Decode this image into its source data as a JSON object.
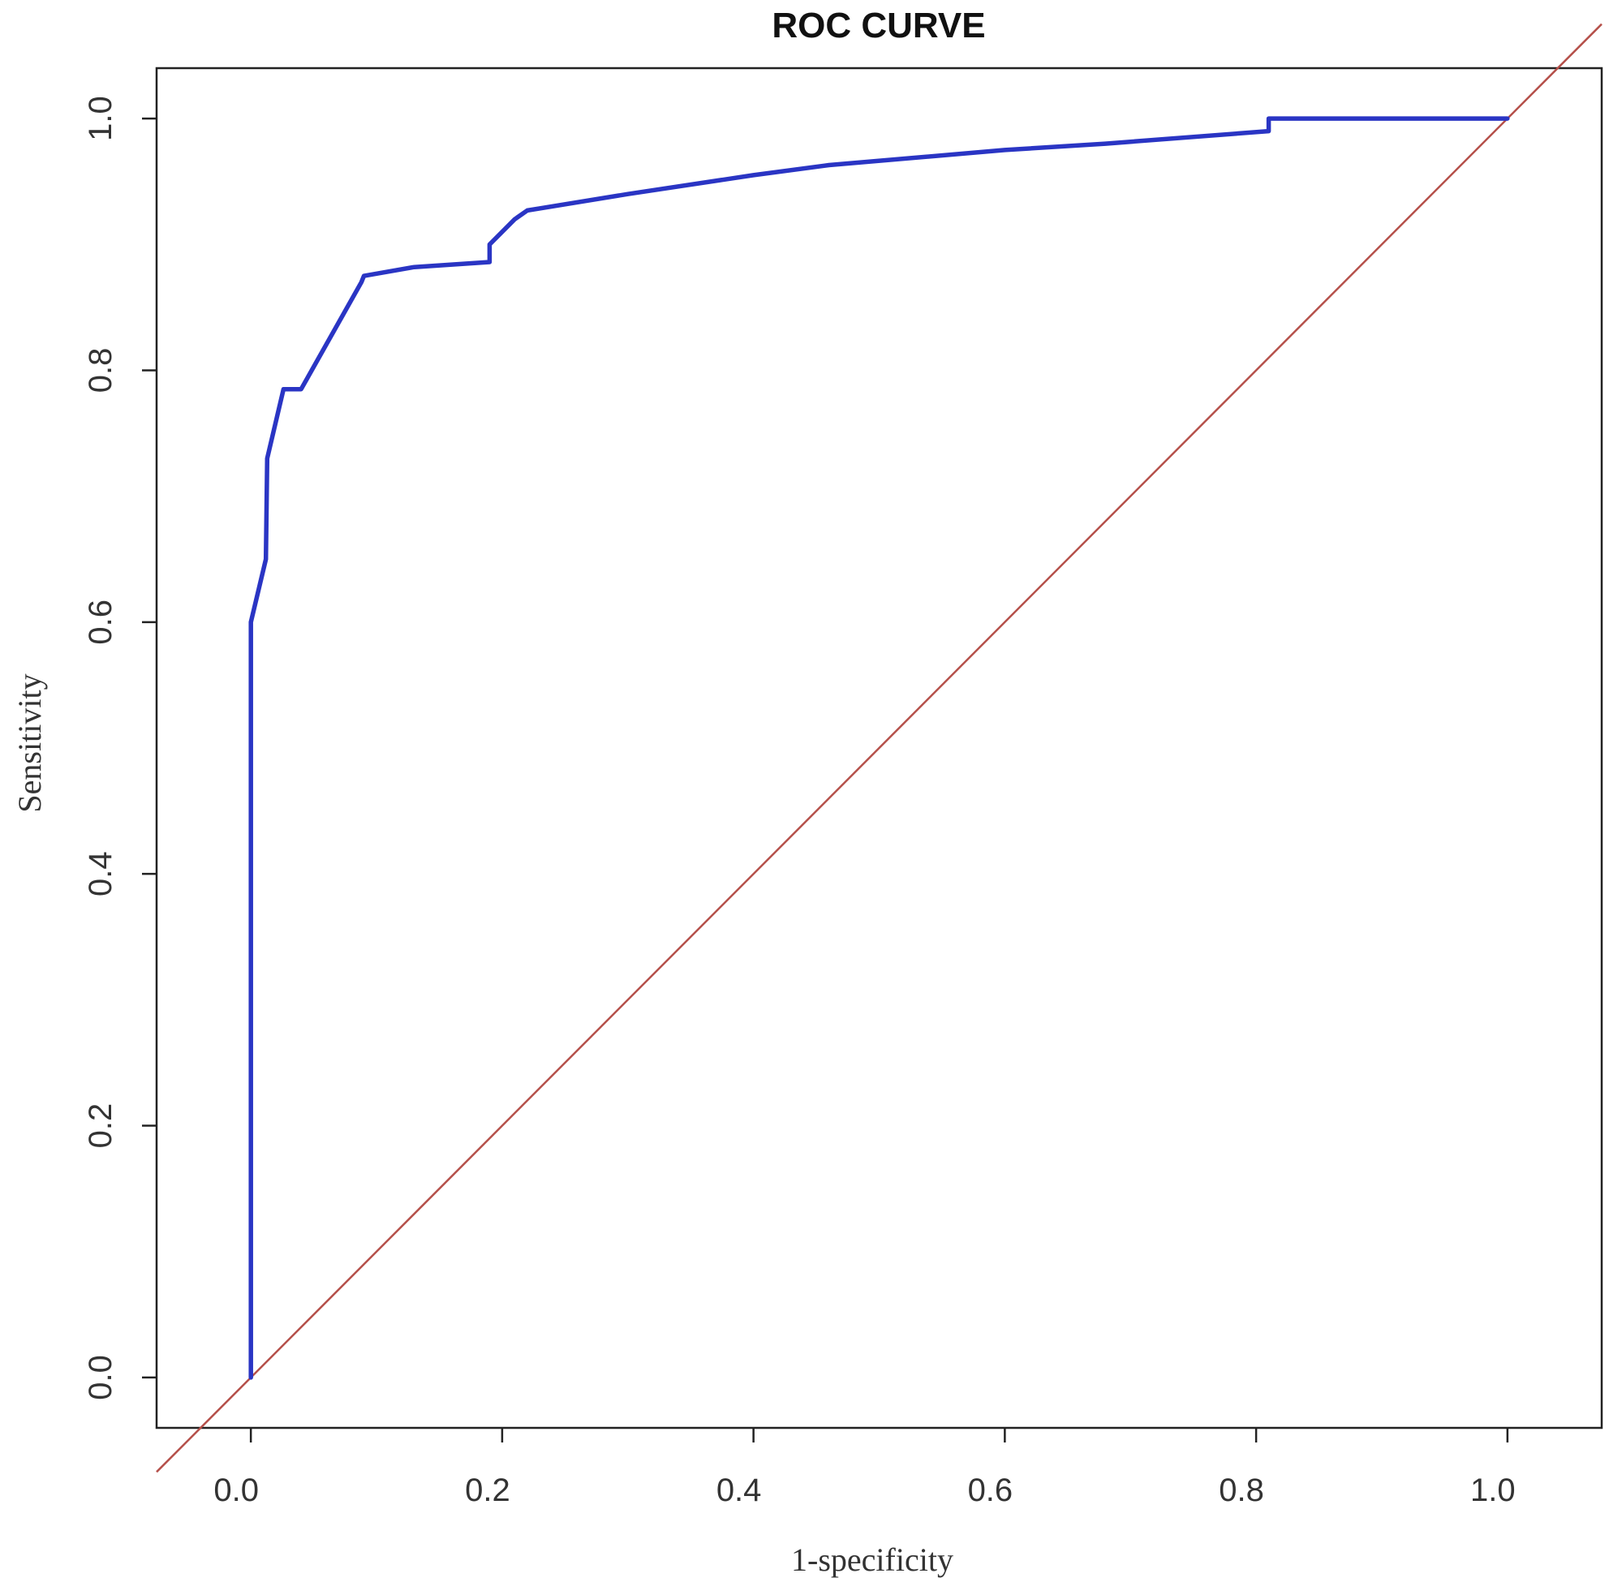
{
  "chart_data": {
    "type": "line",
    "title": "ROC CURVE",
    "xlabel": "1-specificity",
    "ylabel": "Sensitivity",
    "xlim": [
      -0.075,
      1.075
    ],
    "ylim": [
      -0.04,
      1.04
    ],
    "x_ticks": [
      0.0,
      0.2,
      0.4,
      0.6,
      0.8,
      1.0
    ],
    "x_tick_labels": [
      "0.0",
      "0.2",
      "0.4",
      "0.6",
      "0.8",
      "1.0"
    ],
    "y_ticks": [
      0.0,
      0.2,
      0.4,
      0.6,
      0.8,
      1.0
    ],
    "y_tick_labels": [
      "0.0",
      "0.2",
      "0.4",
      "0.6",
      "0.8",
      "1.0"
    ],
    "grid": false,
    "legend": "none",
    "series": [
      {
        "color": "#2a35c4",
        "x": [
          0.0,
          0.0,
          0.012,
          0.013,
          0.026,
          0.04,
          0.088,
          0.09,
          0.13,
          0.19,
          0.19,
          0.21,
          0.22,
          0.3,
          0.4,
          0.46,
          0.6,
          0.68,
          0.81,
          0.81,
          1.0
        ],
        "y": [
          0.0,
          0.6,
          0.65,
          0.73,
          0.785,
          0.785,
          0.87,
          0.875,
          0.882,
          0.886,
          0.9,
          0.92,
          0.927,
          0.94,
          0.955,
          0.963,
          0.975,
          0.98,
          0.99,
          1.0,
          1.0
        ]
      },
      {
        "color": "#b5504a",
        "x": [
          -0.075,
          1.075
        ],
        "y": [
          -0.075,
          1.075
        ]
      }
    ]
  }
}
